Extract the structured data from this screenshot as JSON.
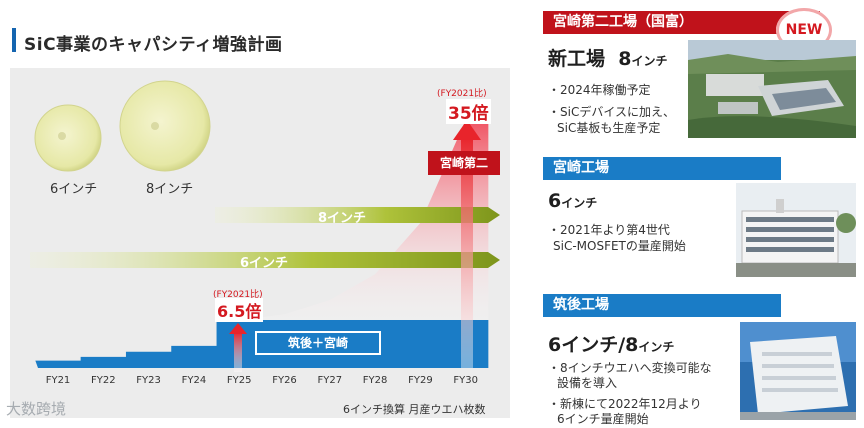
{
  "title": "SiC事業のキャパシティ増強計画",
  "wafers": {
    "six_inch_label": "6インチ",
    "eight_inch_label": "8インチ"
  },
  "arrows": {
    "eight_inch_label": "8インチ",
    "six_inch_label": "6インチ"
  },
  "callouts": {
    "fy25_note": "(FY2021比)",
    "fy25_value": "6.5倍",
    "fy30_note": "(FY2021比)",
    "fy30_value": "35倍",
    "miyazaki2_label": "宮崎第二",
    "base_label": "筑後＋宮崎"
  },
  "chart_data": {
    "type": "area",
    "title": "SiC事業のキャパシティ増強計画",
    "categories": [
      "FY21",
      "FY22",
      "FY23",
      "FY24",
      "FY25",
      "FY26",
      "FY27",
      "FY28",
      "FY29",
      "FY30"
    ],
    "series": [
      {
        "name": "筑後＋宮崎",
        "values": [
          1.0,
          1.5,
          2.2,
          3.0,
          6.5,
          6.5,
          6.5,
          6.5,
          6.5,
          6.5
        ]
      },
      {
        "name": "宮崎第二",
        "values": [
          0,
          0,
          0,
          0,
          0,
          1.0,
          3.5,
          8.0,
          17.0,
          35.0
        ]
      }
    ],
    "annotations": [
      "FY25: 6.5倍 (FY2021比)",
      "FY30: 35倍 (FY2021比)"
    ],
    "note": "6インチ換算 月産ウエハ枚数",
    "colors": {
      "base": "#1a7cc6",
      "growth": "#f6a7b0",
      "arrow_red": "#e8242b",
      "arrow_green": "#8fae1f"
    }
  },
  "footnote": "6インチ換算 月産ウエハ枚数",
  "watermark": "大数跨境",
  "plants": [
    {
      "header": "宮崎第二工場（国富）",
      "badge": "NEW",
      "title": "新工場",
      "size": "8",
      "size_unit": "インチ",
      "bullets": [
        "・2024年稼働予定",
        "・SiCデバイスに加え、",
        "SiC基板も生産予定"
      ],
      "header_color": "#c0121b"
    },
    {
      "header": "宮崎工場",
      "size": "6",
      "size_unit": "インチ",
      "bullets": [
        "・2021年より第4世代",
        "SiC-MOSFETの量産開始"
      ],
      "header_color": "#1a7cc6"
    },
    {
      "header": "筑後工場",
      "size": "6インチ/8",
      "size_unit": "インチ",
      "bullets": [
        "・8インチウエハへ変換可能な",
        "設備を導入",
        "・新棟にて2022年12月より",
        "6インチ量産開始"
      ],
      "header_color": "#1a7cc6"
    }
  ]
}
